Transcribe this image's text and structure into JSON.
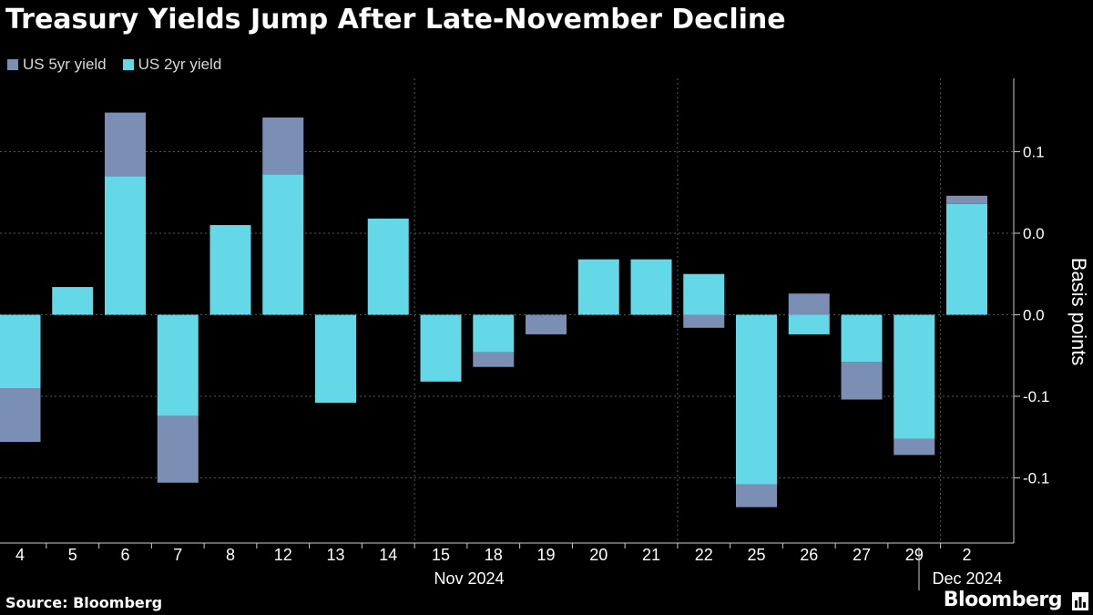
{
  "title": "Treasury Yields Jump After Late-November Decline",
  "source": "Source: Bloomberg",
  "brand": "Bloomberg",
  "colors": {
    "background": "#000000",
    "five_year": "#7b8fb5",
    "two_year": "#64d8e6",
    "grid": "#5a5a5a",
    "text": "#ffffff"
  },
  "chart_data": {
    "type": "bar",
    "stacked": true,
    "categories": [
      "4",
      "5",
      "6",
      "7",
      "8",
      "12",
      "13",
      "14",
      "15",
      "18",
      "19",
      "20",
      "21",
      "22",
      "25",
      "26",
      "27",
      "29",
      "2"
    ],
    "x_group_labels": [
      {
        "label": "Nov 2024"
      },
      {
        "label": "Dec 2024"
      }
    ],
    "ylabel": "Basis points",
    "y_tick_labels": [
      "0.1",
      "0.0",
      "0.0",
      "-0.1",
      "-0.1"
    ],
    "y_ticks": [
      0.1,
      0.05,
      0.0,
      -0.05,
      -0.1
    ],
    "ylim": [
      -0.14,
      0.145
    ],
    "series": [
      {
        "name": "US 2yr yield",
        "values": [
          -0.045,
          0.017,
          0.085,
          -0.062,
          0.055,
          0.086,
          -0.054,
          0.059,
          -0.041,
          -0.023,
          0.0,
          0.034,
          0.034,
          0.025,
          -0.104,
          -0.012,
          -0.029,
          -0.076,
          0.068
        ]
      },
      {
        "name": "US 5yr yield",
        "values": [
          -0.033,
          0.0,
          0.039,
          -0.041,
          0.0,
          0.035,
          0.0,
          0.0,
          0.0,
          -0.009,
          -0.012,
          0.0,
          0.0,
          -0.008,
          -0.014,
          0.013,
          -0.023,
          -0.01,
          0.005
        ]
      }
    ],
    "legend": [
      "US 5yr yield",
      "US 2yr yield"
    ],
    "legend_position": "top-left",
    "grid": true
  }
}
